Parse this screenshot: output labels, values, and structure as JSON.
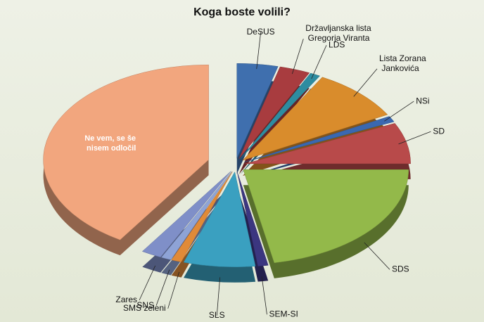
{
  "chart_data": {
    "type": "pie",
    "title": "Koga boste volili?",
    "categories": [
      "DeSUS",
      "Državljanska lista Gregorja Viranta",
      "LDS",
      "Lista Zorana Jankovića",
      "NSi",
      "SD",
      "SDS",
      "SEM-SI",
      "SLS",
      "SMS zeleni",
      "SNS",
      "Zares",
      "Ne vem, se še nisem odločil"
    ],
    "values": [
      4,
      3,
      1,
      9,
      1,
      7,
      22,
      1,
      7,
      1,
      1,
      2,
      41
    ],
    "colors": [
      "#3f6fae",
      "#a83c3f",
      "#2e8ca0",
      "#d98c2c",
      "#3a68b0",
      "#b84a4a",
      "#93b94a",
      "#3b3680",
      "#3aa0c0",
      "#e08a38",
      "#8ea3d6",
      "#7f8fc8",
      "#f2a67e"
    ]
  }
}
